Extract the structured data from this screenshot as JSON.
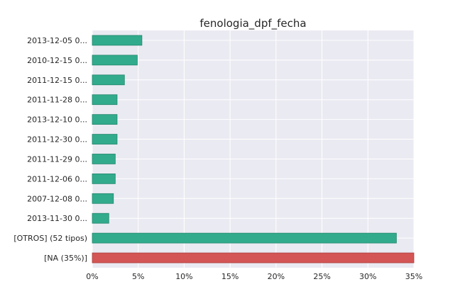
{
  "chart_data": {
    "type": "bar",
    "orientation": "horizontal",
    "title": "fenologia_dpf_fecha",
    "xlabel": "",
    "ylabel": "",
    "xlim": [
      0,
      35
    ],
    "x_ticks": [
      "0%",
      "5%",
      "10%",
      "15%",
      "20%",
      "25%",
      "30%",
      "35%"
    ],
    "grid": true,
    "categories": [
      "2013-12-05 0...",
      "2010-12-15 0...",
      "2011-12-15 0...",
      "2011-11-28 0...",
      "2013-12-10 0...",
      "2011-12-30 0...",
      "2011-11-29 0...",
      "2011-12-06 0...",
      "2007-12-08 0...",
      "2013-11-30 0...",
      "[OTROS] (52 tipos)",
      "[NA (35%)]"
    ],
    "values": [
      5.4,
      4.9,
      3.5,
      2.7,
      2.7,
      2.7,
      2.5,
      2.5,
      2.3,
      1.8,
      33.1,
      35.0
    ],
    "colors": {
      "default_bar": "#31ab8c",
      "default_edge": "#25876d",
      "na_bar": "#d45555",
      "na_edge": "#a83f3f",
      "plot_bg": "#eaeaf2",
      "grid": "#ffffff"
    }
  }
}
